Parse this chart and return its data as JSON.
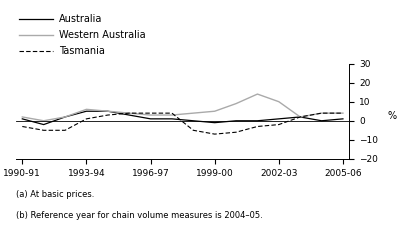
{
  "x_labels": [
    "1990-91",
    "1993-94",
    "1996-97",
    "1999-00",
    "2002-03",
    "2005-06"
  ],
  "x_ticks": [
    0,
    3,
    6,
    9,
    12,
    15
  ],
  "australia": [
    1,
    -2,
    2,
    5,
    5,
    3,
    1,
    1,
    0,
    -1,
    0,
    0,
    1,
    2,
    0,
    1
  ],
  "western_australia": [
    2,
    0,
    2,
    6,
    5,
    4,
    3,
    3,
    4,
    5,
    9,
    14,
    10,
    2,
    4,
    4
  ],
  "tasmania": [
    -3,
    -5,
    -5,
    1,
    3,
    4,
    4,
    4,
    -5,
    -7,
    -6,
    -3,
    -2,
    2,
    4,
    4
  ],
  "x_values": [
    0,
    1,
    2,
    3,
    4,
    5,
    6,
    7,
    8,
    9,
    10,
    11,
    12,
    13,
    14,
    15
  ],
  "ylim": [
    -20,
    30
  ],
  "yticks": [
    -20,
    -10,
    0,
    10,
    20,
    30
  ],
  "ylabel": "%",
  "background_color": "#ffffff",
  "australia_color": "#000000",
  "western_australia_color": "#aaaaaa",
  "tasmania_color": "#000000",
  "footnote1": "(a) At basic prices.",
  "footnote2": "(b) Reference year for chain volume measures is 2004–05.",
  "legend_australia": "Australia",
  "legend_wa": "Western Australia",
  "legend_tas": "Tasmania"
}
